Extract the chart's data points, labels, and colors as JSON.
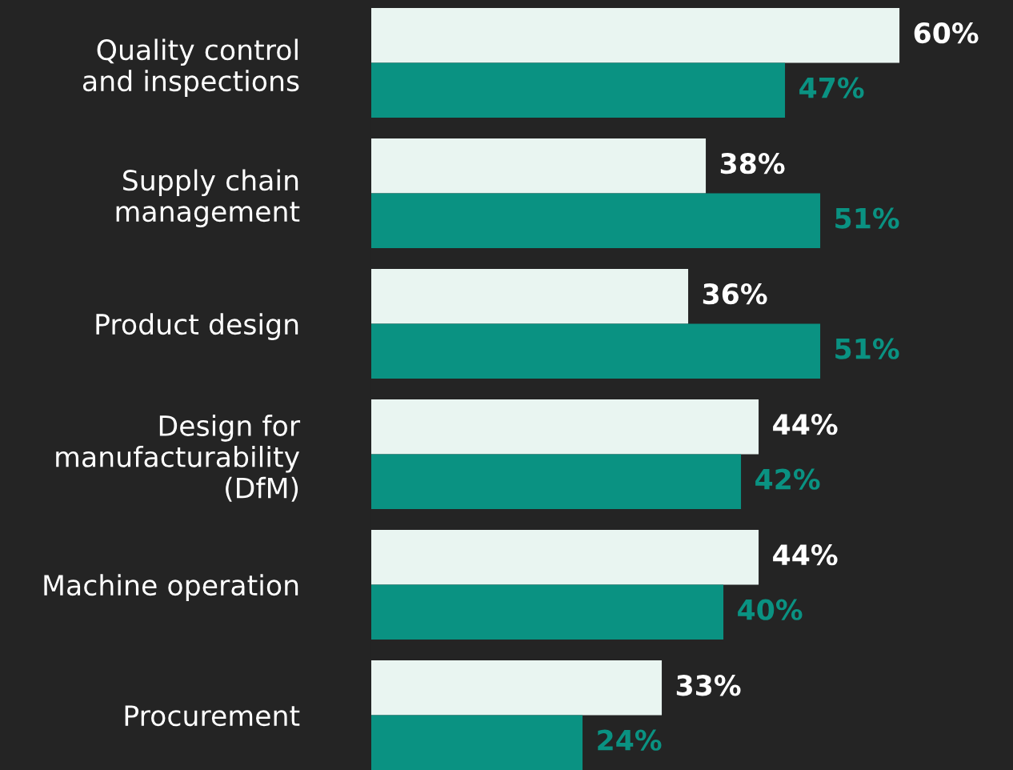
{
  "chart_data": {
    "type": "bar",
    "orientation": "horizontal",
    "categories": [
      "Quality control\nand inspections",
      "Supply chain\nmanagement",
      "Product design",
      "Design for\nmanufacturability\n(DfM)",
      "Machine operation",
      "Procurement"
    ],
    "series": [
      {
        "color": "#e9f5f1",
        "values": [
          60,
          38,
          36,
          44,
          44,
          33
        ],
        "value_labels": [
          "60%",
          "38%",
          "36%",
          "44%",
          "44%",
          "33%"
        ]
      },
      {
        "color": "#0a9282",
        "values": [
          47,
          51,
          51,
          42,
          40,
          24
        ],
        "value_labels": [
          "47%",
          "51%",
          "51%",
          "42%",
          "40%",
          "24%"
        ]
      }
    ],
    "tick_labels": "y",
    "grid": false,
    "legend": false
  }
}
